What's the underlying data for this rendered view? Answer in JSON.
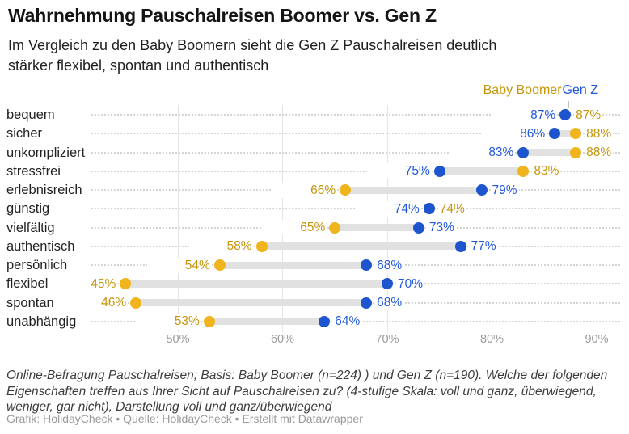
{
  "header": {
    "title": "Wahrnehmung Pauschalreisen Boomer vs. Gen Z",
    "subtitle": "Im Vergleich zu den Baby Boomern sieht die Gen Z Pauschalreisen deutlich stärker flexibel, spontan und authentisch"
  },
  "legend": {
    "boomer_label": "Baby Boomer",
    "genz_label": "Gen Z"
  },
  "colors": {
    "boomer_dot": "#F0B41C",
    "boomer_text": "#C6950A",
    "genz_dot": "#1D55CE",
    "genz_text": "#2158DB",
    "connector": "#E1E1E1",
    "gridline": "#E5E5E5"
  },
  "chart_data": {
    "type": "scatter",
    "variant": "dumbbell",
    "title": "Wahrnehmung Pauschalreisen Boomer vs. Gen Z",
    "categories": [
      "bequem",
      "sicher",
      "unkompliziert",
      "stressfrei",
      "erlebnisreich",
      "günstig",
      "vielfältig",
      "authentisch",
      "persönlich",
      "flexibel",
      "spontan",
      "unabhängig"
    ],
    "series": [
      {
        "name": "Baby Boomer",
        "values": [
          87,
          88,
          88,
          83,
          66,
          74,
          65,
          58,
          54,
          45,
          46,
          53
        ]
      },
      {
        "name": "Gen Z",
        "values": [
          87,
          86,
          83,
          75,
          79,
          74,
          73,
          77,
          68,
          70,
          68,
          64
        ]
      }
    ],
    "value_suffix": "%",
    "xlabel": "",
    "ylabel": "",
    "x_ticks": [
      "50%",
      "60%",
      "70%",
      "80%",
      "90%"
    ],
    "x_tick_values": [
      50,
      60,
      70,
      80,
      90
    ],
    "xlim": [
      41.7,
      92.2
    ],
    "grid": "vertical-solid-and-horizontal-dotted",
    "legend_position": "top-right"
  },
  "footer": {
    "notes": "Online-Befragung Pauschalreisen; Basis: Baby Boomer (n=224) ) und Gen Z (n=190). Welche der folgenden Eigenschaften treffen aus Ihrer Sicht auf Pauschalreisen zu? (4-stufige Skala: voll und ganz, überwiegend, weniger, gar nicht), Darstellung voll und ganz/überwiegend",
    "credit": "Grafik: HolidayCheck • Quelle: HolidayCheck • Erstellt mit Datawrapper"
  }
}
